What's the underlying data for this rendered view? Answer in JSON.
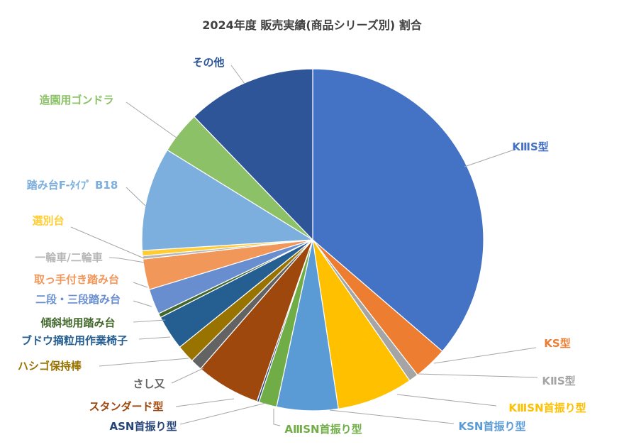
{
  "chart_data": {
    "type": "pie",
    "title": "2024年度 販売実績(商品シリーズ別) 割合",
    "slices": [
      {
        "label": "KⅢS型",
        "value": 36.3,
        "color": "#4472c4"
      },
      {
        "label": "KS型",
        "value": 3.2,
        "color": "#ed7d31"
      },
      {
        "label": "KⅡS型",
        "value": 0.9,
        "color": "#a5a5a5"
      },
      {
        "label": "KⅢSN首振り型",
        "value": 7.2,
        "color": "#ffc000"
      },
      {
        "label": "KSN首振り型",
        "value": 5.8,
        "color": "#5b9bd5"
      },
      {
        "label": "AⅢSN首振り型",
        "value": 1.7,
        "color": "#70ad47"
      },
      {
        "label": "ASN首振り型",
        "value": 0.2,
        "color": "#264478"
      },
      {
        "label": "スタンダード型",
        "value": 6.1,
        "color": "#9e480e"
      },
      {
        "label": "さし又",
        "value": 1.1,
        "color": "#636363"
      },
      {
        "label": "ハシゴ保持棒",
        "value": 1.7,
        "color": "#997300"
      },
      {
        "label": "ブドウ摘粒用作業椅子",
        "value": 3.3,
        "color": "#255e91"
      },
      {
        "label": "傾斜地用踏み台",
        "value": 0.4,
        "color": "#43682b"
      },
      {
        "label": "二段・三段踏み台",
        "value": 2.4,
        "color": "#698ed0"
      },
      {
        "label": "取っ手付き踏み台",
        "value": 2.9,
        "color": "#f1975a"
      },
      {
        "label": "一輪車/二輪車",
        "value": 0.3,
        "color": "#b7b7b7"
      },
      {
        "label": "選別台",
        "value": 0.5,
        "color": "#ffcd33"
      },
      {
        "label": "踏み台F-ﾀｲﾌﾟ B18",
        "value": 9.8,
        "color": "#7cafdd"
      },
      {
        "label": "造園用ゴンドラ",
        "value": 4.0,
        "color": "#8cc168"
      },
      {
        "label": "その他",
        "value": 12.2,
        "color": "#2e5597"
      }
    ]
  }
}
